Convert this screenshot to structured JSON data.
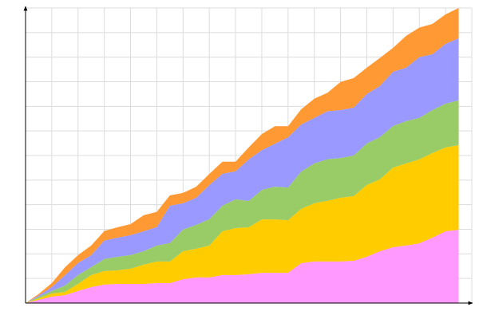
{
  "chart_data": {
    "type": "stacked_area",
    "x": [
      0,
      1,
      2,
      3,
      4,
      5,
      6,
      7,
      8,
      9,
      10,
      11,
      12,
      13,
      14,
      15,
      16,
      17,
      18,
      19,
      20,
      21,
      22,
      23,
      24,
      25,
      26,
      27,
      28,
      29,
      30,
      31,
      32,
      33
    ],
    "series": [
      {
        "color": "#ff99ff",
        "values": [
          0,
          0.13,
          0.26,
          0.32,
          0.49,
          0.65,
          0.75,
          0.78,
          0.78,
          0.78,
          0.81,
          0.81,
          0.97,
          1.04,
          1.04,
          1.14,
          1.14,
          1.17,
          1.23,
          1.23,
          1.23,
          1.62,
          1.69,
          1.69,
          1.69,
          1.72,
          1.88,
          2.11,
          2.27,
          2.34,
          2.43,
          2.66,
          2.92,
          2.98
        ]
      },
      {
        "color": "#ffcc00",
        "values": [
          0,
          0.06,
          0.13,
          0.13,
          0.29,
          0.49,
          0.55,
          0.55,
          0.62,
          0.78,
          0.88,
          0.88,
          1.14,
          1.17,
          1.3,
          1.78,
          1.91,
          1.91,
          2.17,
          2.17,
          2.14,
          2.21,
          2.37,
          2.47,
          2.59,
          2.63,
          2.92,
          2.92,
          3.24,
          3.34,
          3.41,
          3.44,
          3.41,
          3.44
        ]
      },
      {
        "color": "#99cc66",
        "values": [
          0,
          0.06,
          0.1,
          0.26,
          0.36,
          0.32,
          0.49,
          0.55,
          0.55,
          0.55,
          0.65,
          0.75,
          0.88,
          0.97,
          1.07,
          1.04,
          1.17,
          1.07,
          1.2,
          1.33,
          1.33,
          1.52,
          1.62,
          1.69,
          1.62,
          1.65,
          1.69,
          1.72,
          1.69,
          1.72,
          1.69,
          1.75,
          1.78,
          1.82
        ]
      },
      {
        "color": "#9999ff",
        "values": [
          0,
          0.06,
          0.16,
          0.42,
          0.49,
          0.49,
          0.75,
          0.78,
          0.81,
          0.81,
          0.75,
          1.52,
          1.07,
          1.1,
          1.39,
          1.3,
          1.14,
          1.69,
          1.62,
          1.75,
          2.04,
          1.91,
          1.85,
          1.95,
          1.95,
          1.95,
          2.01,
          2.08,
          2.21,
          2.17,
          2.47,
          2.27,
          2.43,
          2.53
        ]
      },
      {
        "color": "#ff9933",
        "values": [
          0,
          0.06,
          0.16,
          0.32,
          0.32,
          0.39,
          0.39,
          0.42,
          0.45,
          0.65,
          0.62,
          0.42,
          0.42,
          0.45,
          0.45,
          0.49,
          0.39,
          0.49,
          0.65,
          0.71,
          0.45,
          0.62,
          0.78,
          0.75,
          1.14,
          1.2,
          1.07,
          1.14,
          0.97,
          1.3,
          1.2,
          1.23,
          1.2,
          1.23
        ]
      }
    ],
    "xlim": [
      0,
      34
    ],
    "ylim": [
      0,
      12
    ],
    "xticks": [
      0,
      2,
      4,
      6,
      8,
      10,
      12,
      14,
      16,
      18,
      20,
      22,
      24,
      26,
      28,
      30,
      32,
      34
    ],
    "yticks": [
      0,
      1,
      2,
      3,
      4,
      5,
      6,
      7,
      8,
      9,
      10,
      11,
      12
    ],
    "grid": true,
    "tick_labels": false
  }
}
